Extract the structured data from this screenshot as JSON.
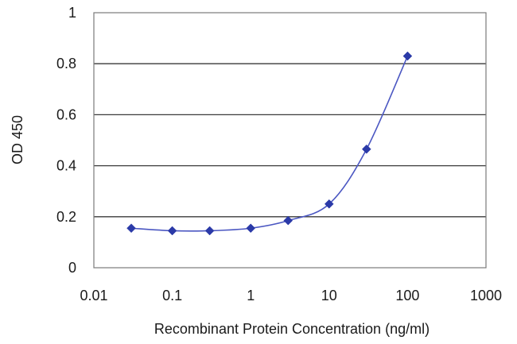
{
  "chart_data": {
    "type": "line",
    "xscale": "log",
    "xlim": [
      0.01,
      1000
    ],
    "ylim": [
      0,
      1
    ],
    "grid": "horizontal",
    "xlabel": "Recombinant Protein Concentration (ng/ml)",
    "ylabel": "OD 450",
    "x_ticks": [
      {
        "value": 0.01,
        "label": "0.01"
      },
      {
        "value": 0.1,
        "label": "0.1"
      },
      {
        "value": 1,
        "label": "1"
      },
      {
        "value": 10,
        "label": "10"
      },
      {
        "value": 100,
        "label": "100"
      },
      {
        "value": 1000,
        "label": "1000"
      }
    ],
    "y_ticks": [
      {
        "value": 0,
        "label": "0"
      },
      {
        "value": 0.2,
        "label": "0.2"
      },
      {
        "value": 0.4,
        "label": "0.4"
      },
      {
        "value": 0.6,
        "label": "0.6"
      },
      {
        "value": 0.8,
        "label": "0.8"
      },
      {
        "value": 1,
        "label": "1"
      }
    ],
    "series": [
      {
        "color": "#2b3aa8",
        "marker": "diamond",
        "points": [
          {
            "x": 0.03,
            "y": 0.155
          },
          {
            "x": 0.1,
            "y": 0.145
          },
          {
            "x": 0.3,
            "y": 0.145
          },
          {
            "x": 1,
            "y": 0.155
          },
          {
            "x": 3,
            "y": 0.185
          },
          {
            "x": 10,
            "y": 0.25
          },
          {
            "x": 30,
            "y": 0.465
          },
          {
            "x": 100,
            "y": 0.83
          }
        ]
      }
    ]
  }
}
